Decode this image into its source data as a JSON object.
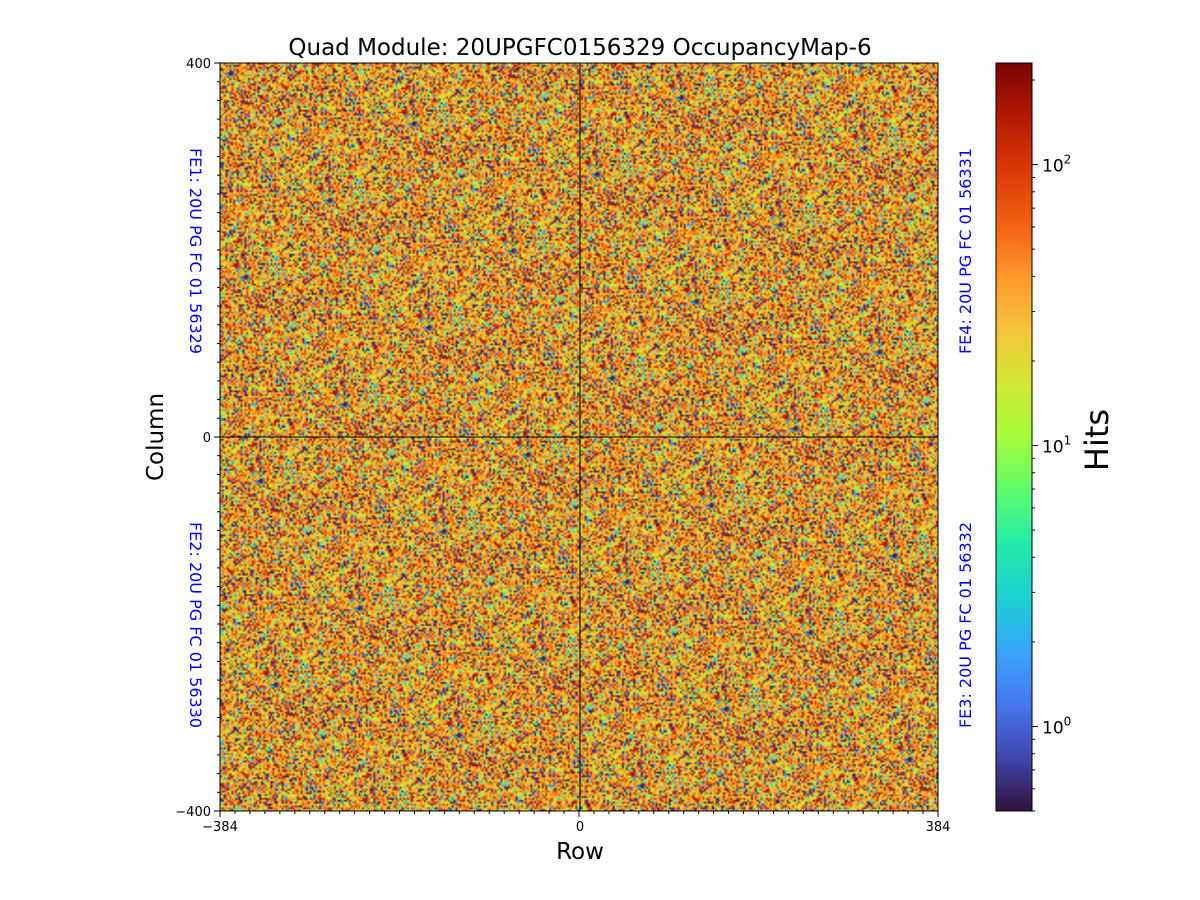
{
  "chart_data": {
    "type": "heatmap",
    "title": "Quad Module: 20UPGFC0156329 OccupancyMap-6",
    "xlabel": "Row",
    "ylabel": "Column",
    "xlim": [
      -384,
      384
    ],
    "ylim": [
      -400,
      400
    ],
    "xticks": [
      {
        "value": -384,
        "label": "−384"
      },
      {
        "value": 0,
        "label": "0"
      },
      {
        "value": 384,
        "label": "384"
      }
    ],
    "yticks": [
      {
        "value": 400,
        "label": "400"
      },
      {
        "value": 0,
        "label": "0"
      },
      {
        "value": -400,
        "label": "−400"
      }
    ],
    "quadrants": [
      {
        "id": "fe1",
        "label": "FE1: 20U PG FC 01 56329",
        "x_range": [
          -384,
          0
        ],
        "y_range": [
          0,
          400
        ]
      },
      {
        "id": "fe2",
        "label": "FE2: 20U PG FC 01 56330",
        "x_range": [
          -384,
          0
        ],
        "y_range": [
          -400,
          0
        ]
      },
      {
        "id": "fe3",
        "label": "FE3: 20U PG FC 01 56332",
        "x_range": [
          0,
          384
        ],
        "y_range": [
          -400,
          0
        ]
      },
      {
        "id": "fe4",
        "label": "FE4: 20U PG FC 01 56331",
        "x_range": [
          0,
          384
        ],
        "y_range": [
          0,
          400
        ]
      }
    ],
    "label_color": "#0000ff",
    "colorbar": {
      "label": "Hits",
      "scale": "log",
      "colormap": "turbo",
      "range": [
        0.5,
        230
      ],
      "ticks": [
        {
          "value": 1,
          "base": "10",
          "exp": "0"
        },
        {
          "value": 10,
          "base": "10",
          "exp": "1"
        },
        {
          "value": 100,
          "base": "10",
          "exp": "2"
        }
      ]
    },
    "distribution_note": "random per-pixel occupancy, most pixels 10-200 hits"
  }
}
